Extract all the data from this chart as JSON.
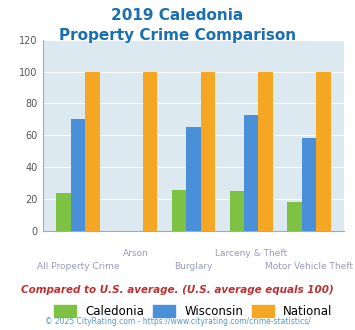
{
  "title_line1": "2019 Caledonia",
  "title_line2": "Property Crime Comparison",
  "categories": [
    "All Property Crime",
    "Arson",
    "Burglary",
    "Larceny & Theft",
    "Motor Vehicle Theft"
  ],
  "caledonia": [
    24,
    0,
    26,
    25,
    18
  ],
  "wisconsin": [
    70,
    0,
    65,
    73,
    58
  ],
  "national": [
    100,
    100,
    100,
    100,
    100
  ],
  "color_caledonia": "#7dc242",
  "color_wisconsin": "#4a90d9",
  "color_national": "#f5a623",
  "ylim": [
    0,
    120
  ],
  "yticks": [
    0,
    20,
    40,
    60,
    80,
    100,
    120
  ],
  "title_color": "#1a6faf",
  "xlabel_upper_color": "#9b9bbb",
  "xlabel_lower_color": "#9b9bbb",
  "footer_text": "Compared to U.S. average. (U.S. average equals 100)",
  "copyright_text": "© 2025 CityRating.com - https://www.cityrating.com/crime-statistics/",
  "bg_color": "#dce9f0",
  "legend_labels": [
    "Caledonia",
    "Wisconsin",
    "National"
  ],
  "bar_width": 0.25
}
